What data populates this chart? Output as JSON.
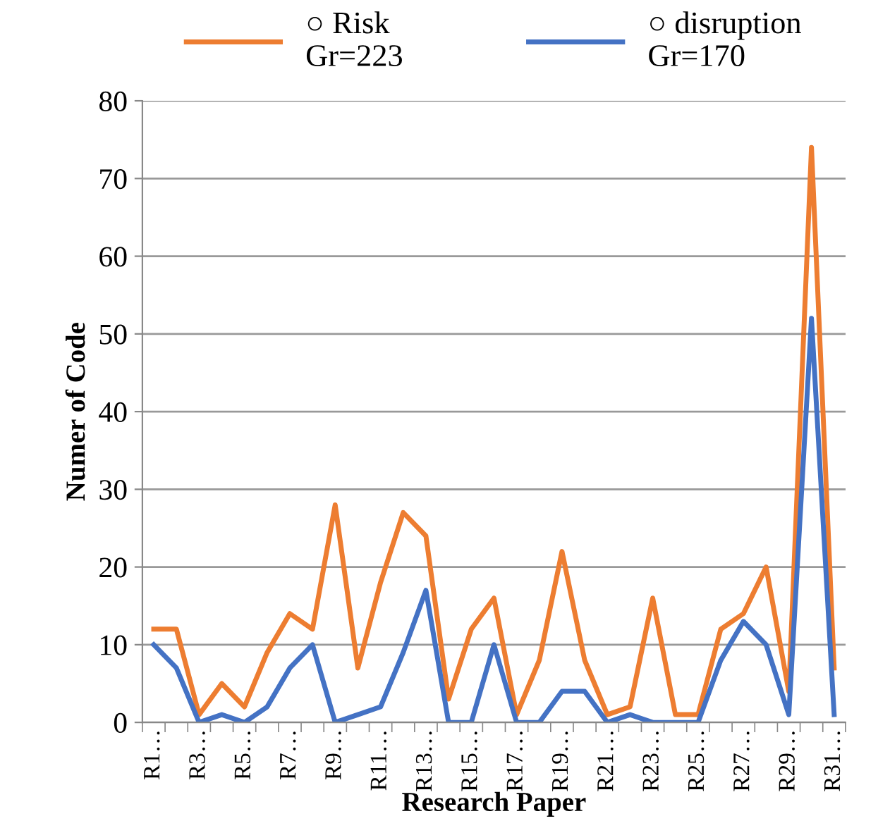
{
  "chart_data": {
    "type": "line",
    "xlabel": "Research Paper",
    "ylabel": "Numer of Code",
    "categories": [
      "R1…",
      null,
      "R3…",
      null,
      "R5…",
      null,
      "R7…",
      null,
      "R9…",
      null,
      "R11…",
      null,
      "R13…",
      null,
      "R15…",
      null,
      "R17…",
      null,
      "R19…",
      null,
      "R21…",
      null,
      "R23…",
      null,
      "R25…",
      null,
      "R27…",
      null,
      "R29…",
      null,
      "R31…"
    ],
    "series": [
      {
        "name": "○ Risk\nGr=223",
        "color": "#ed7d31",
        "values": [
          12,
          12,
          1,
          5,
          2,
          9,
          14,
          12,
          28,
          7,
          18,
          27,
          24,
          3,
          12,
          16,
          1,
          8,
          22,
          8,
          1,
          2,
          16,
          1,
          1,
          12,
          14,
          20,
          4,
          74,
          7
        ]
      },
      {
        "name": "○ disruption\nGr=170",
        "color": "#4472c4",
        "values": [
          10,
          7,
          0,
          1,
          0,
          2,
          7,
          10,
          0,
          1,
          2,
          9,
          17,
          0,
          0,
          10,
          0,
          0,
          4,
          4,
          0,
          1,
          0,
          0,
          0,
          8,
          13,
          10,
          1,
          52,
          1
        ]
      }
    ],
    "ylim": [
      0,
      80
    ],
    "yticks": [
      0,
      10,
      20,
      30,
      40,
      50,
      60,
      70,
      80
    ],
    "grid": "y",
    "legend": "top",
    "marker": "none",
    "line_style": "solid"
  }
}
